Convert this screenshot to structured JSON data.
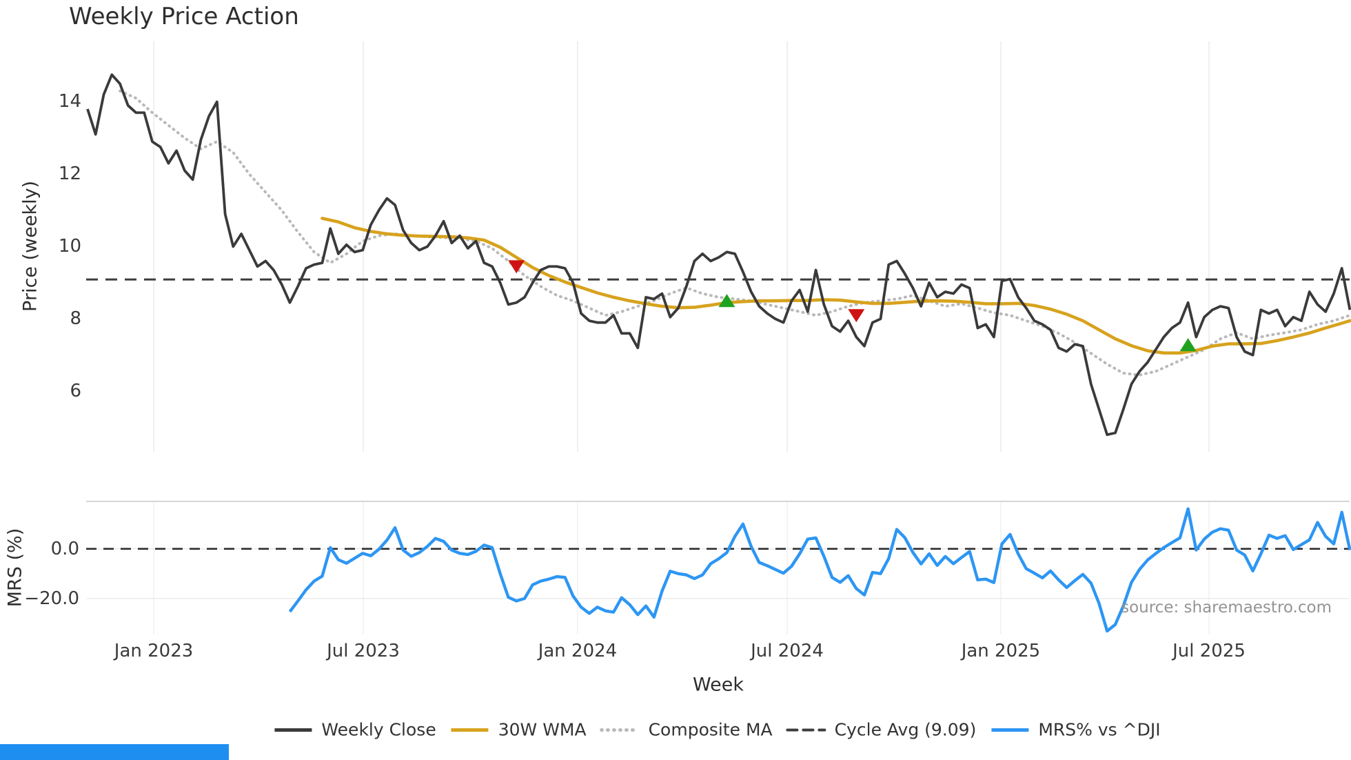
{
  "title": "Weekly Price Action",
  "source_note": "source: sharemaestro.com",
  "colors": {
    "weekly_close": "#3a3a3a",
    "wma_30w": "#d7a21d",
    "composite_ma": "#b9b9b9",
    "cycle_avg": "#3d3d3d",
    "mrs": "#2d96f3",
    "sell_marker": "#cf1313",
    "buy_marker": "#1fa21f",
    "grid": "#ececec",
    "panel_border": "#c9c9c9",
    "source_text": "#949494"
  },
  "chart_data": {
    "type": "line",
    "title": "Weekly Price Action",
    "x_axis": {
      "label": "Week",
      "tick_labels": [
        "Jan 2023",
        "Jul 2023",
        "Jan 2024",
        "Jul 2024",
        "Jan 2025",
        "Jul 2025"
      ],
      "tick_weeks": [
        8.18,
        34.07,
        60.56,
        86.46,
        112.86,
        138.59
      ]
    },
    "price_panel": {
      "ylabel": "Price (weekly)",
      "ytick_labels": [
        "14",
        "12",
        "10",
        "8",
        "6"
      ],
      "yticks": [
        14,
        12,
        10,
        8,
        6
      ],
      "ylim": [
        4.33,
        15.67
      ],
      "cycle_avg": 9.09,
      "grid": "vertical-only"
    },
    "mrs_panel": {
      "ylabel": "MRS (%)",
      "ytick_labels": [
        "0.0",
        "−20.0"
      ],
      "yticks": [
        0.0,
        -20.0
      ],
      "ylim": [
        -34.5,
        19.1
      ],
      "zero_line": 0.0
    },
    "legend": [
      {
        "label": "Weekly Close",
        "color": "#3a3a3a",
        "style": "solid"
      },
      {
        "label": "30W WMA",
        "color": "#d7a21d",
        "style": "solid"
      },
      {
        "label": "Composite MA",
        "color": "#b9b9b9",
        "style": "dotted"
      },
      {
        "label": "Cycle Avg (9.09)",
        "color": "#3d3d3d",
        "style": "dashed"
      },
      {
        "label": "MRS% vs ^DJI",
        "color": "#2d96f3",
        "style": "solid"
      }
    ],
    "series": {
      "weekly_close": {
        "name": "Weekly Close",
        "start_week": 0,
        "values": [
          13.8,
          13.1,
          14.2,
          14.75,
          14.5,
          13.9,
          13.7,
          13.7,
          12.9,
          12.75,
          12.3,
          12.65,
          12.1,
          11.85,
          12.95,
          13.6,
          14.0,
          10.9,
          10.0,
          10.35,
          9.9,
          9.45,
          9.6,
          9.35,
          8.95,
          8.45,
          8.9,
          9.4,
          9.5,
          9.55,
          10.5,
          9.8,
          10.05,
          9.85,
          9.9,
          10.6,
          11.0,
          11.33,
          11.15,
          10.45,
          10.1,
          9.9,
          10.0,
          10.3,
          10.7,
          10.1,
          10.3,
          9.95,
          10.15,
          9.55,
          9.45,
          9.0,
          8.4,
          8.45,
          8.6,
          9.0,
          9.35,
          9.45,
          9.45,
          9.4,
          9.0,
          8.15,
          7.95,
          7.9,
          7.9,
          8.1,
          7.6,
          7.6,
          7.2,
          8.6,
          8.55,
          8.7,
          8.05,
          8.3,
          8.9,
          9.6,
          9.8,
          9.6,
          9.7,
          9.85,
          9.8,
          9.3,
          8.75,
          8.35,
          8.15,
          8.0,
          7.9,
          8.5,
          8.8,
          8.2,
          9.35,
          8.4,
          7.8,
          7.65,
          7.95,
          7.5,
          7.25,
          7.9,
          8.0,
          9.5,
          9.6,
          9.25,
          8.85,
          8.35,
          9.0,
          8.6,
          8.75,
          8.7,
          8.95,
          8.85,
          7.75,
          7.85,
          7.5,
          9.05,
          9.1,
          8.6,
          8.3,
          7.95,
          7.85,
          7.7,
          7.2,
          7.1,
          7.3,
          7.25,
          6.2,
          5.5,
          4.8,
          4.85,
          5.5,
          6.2,
          6.55,
          6.8,
          7.15,
          7.5,
          7.75,
          7.9,
          8.45,
          7.5,
          8.05,
          8.25,
          8.35,
          8.3,
          7.5,
          7.1,
          7.0,
          8.25,
          8.15,
          8.25,
          7.8,
          8.05,
          7.95,
          8.75,
          8.4,
          8.2,
          8.7,
          9.4,
          8.25
        ]
      },
      "wma_30w": {
        "name": "30W WMA",
        "points": [
          [
            29,
            10.78
          ],
          [
            31,
            10.68
          ],
          [
            33,
            10.52
          ],
          [
            35,
            10.42
          ],
          [
            37,
            10.35
          ],
          [
            39,
            10.31
          ],
          [
            41,
            10.29
          ],
          [
            43,
            10.28
          ],
          [
            45,
            10.27
          ],
          [
            47,
            10.24
          ],
          [
            49,
            10.18
          ],
          [
            51,
            9.98
          ],
          [
            53,
            9.7
          ],
          [
            55,
            9.42
          ],
          [
            57,
            9.2
          ],
          [
            59,
            9.02
          ],
          [
            61,
            8.87
          ],
          [
            63,
            8.72
          ],
          [
            65,
            8.6
          ],
          [
            67,
            8.5
          ],
          [
            69,
            8.42
          ],
          [
            71,
            8.35
          ],
          [
            73,
            8.31
          ],
          [
            75,
            8.32
          ],
          [
            77,
            8.38
          ],
          [
            79,
            8.45
          ],
          [
            81,
            8.48
          ],
          [
            83,
            8.5
          ],
          [
            85,
            8.5
          ],
          [
            87,
            8.51
          ],
          [
            89,
            8.51
          ],
          [
            91,
            8.53
          ],
          [
            93,
            8.52
          ],
          [
            95,
            8.47
          ],
          [
            97,
            8.43
          ],
          [
            99,
            8.43
          ],
          [
            101,
            8.46
          ],
          [
            103,
            8.49
          ],
          [
            105,
            8.5
          ],
          [
            107,
            8.49
          ],
          [
            109,
            8.46
          ],
          [
            111,
            8.42
          ],
          [
            113,
            8.42
          ],
          [
            115,
            8.43
          ],
          [
            117,
            8.37
          ],
          [
            119,
            8.27
          ],
          [
            121,
            8.13
          ],
          [
            123,
            7.95
          ],
          [
            125,
            7.7
          ],
          [
            127,
            7.45
          ],
          [
            129,
            7.26
          ],
          [
            131,
            7.12
          ],
          [
            133,
            7.06
          ],
          [
            135,
            7.06
          ],
          [
            137,
            7.13
          ],
          [
            139,
            7.25
          ],
          [
            141,
            7.31
          ],
          [
            143,
            7.31
          ],
          [
            145,
            7.32
          ],
          [
            147,
            7.4
          ],
          [
            149,
            7.5
          ],
          [
            151,
            7.61
          ],
          [
            153,
            7.75
          ],
          [
            155,
            7.88
          ],
          [
            156,
            7.95
          ]
        ]
      },
      "composite_ma": {
        "name": "Composite MA",
        "points": [
          [
            4,
            14.3
          ],
          [
            6,
            14.1
          ],
          [
            8,
            13.7
          ],
          [
            10,
            13.35
          ],
          [
            12,
            13.0
          ],
          [
            14,
            12.7
          ],
          [
            16,
            12.9
          ],
          [
            18,
            12.6
          ],
          [
            20,
            12.0
          ],
          [
            22,
            11.5
          ],
          [
            24,
            11.0
          ],
          [
            26,
            10.4
          ],
          [
            28,
            9.85
          ],
          [
            30,
            9.55
          ],
          [
            32,
            9.8
          ],
          [
            34,
            10.15
          ],
          [
            36,
            10.3
          ],
          [
            38,
            10.35
          ],
          [
            40,
            10.3
          ],
          [
            42,
            10.27
          ],
          [
            44,
            10.25
          ],
          [
            46,
            10.22
          ],
          [
            48,
            10.15
          ],
          [
            50,
            9.95
          ],
          [
            52,
            9.6
          ],
          [
            54,
            9.2
          ],
          [
            56,
            8.9
          ],
          [
            58,
            8.65
          ],
          [
            60,
            8.5
          ],
          [
            62,
            8.3
          ],
          [
            64,
            8.1
          ],
          [
            66,
            8.2
          ],
          [
            68,
            8.35
          ],
          [
            70,
            8.5
          ],
          [
            72,
            8.7
          ],
          [
            74,
            8.86
          ],
          [
            76,
            8.7
          ],
          [
            78,
            8.6
          ],
          [
            80,
            8.55
          ],
          [
            82,
            8.5
          ],
          [
            84,
            8.4
          ],
          [
            86,
            8.3
          ],
          [
            88,
            8.2
          ],
          [
            90,
            8.1
          ],
          [
            92,
            8.2
          ],
          [
            94,
            8.35
          ],
          [
            96,
            8.45
          ],
          [
            98,
            8.5
          ],
          [
            100,
            8.55
          ],
          [
            102,
            8.65
          ],
          [
            104,
            8.5
          ],
          [
            106,
            8.35
          ],
          [
            108,
            8.42
          ],
          [
            110,
            8.3
          ],
          [
            112,
            8.17
          ],
          [
            114,
            8.1
          ],
          [
            116,
            7.95
          ],
          [
            118,
            7.8
          ],
          [
            120,
            7.6
          ],
          [
            122,
            7.35
          ],
          [
            124,
            7.05
          ],
          [
            126,
            6.75
          ],
          [
            128,
            6.5
          ],
          [
            130,
            6.45
          ],
          [
            132,
            6.55
          ],
          [
            134,
            6.75
          ],
          [
            136,
            6.95
          ],
          [
            138,
            7.15
          ],
          [
            140,
            7.45
          ],
          [
            142,
            7.62
          ],
          [
            144,
            7.45
          ],
          [
            146,
            7.55
          ],
          [
            148,
            7.62
          ],
          [
            150,
            7.7
          ],
          [
            152,
            7.85
          ],
          [
            154,
            7.95
          ],
          [
            156,
            8.1
          ]
        ]
      },
      "mrs_pct": {
        "name": "MRS% vs ^DJI",
        "start_week": 25,
        "values": [
          -25.3,
          -21,
          -16.5,
          -13,
          -11,
          0.5,
          -4.4,
          -5.8,
          -3.8,
          -1.8,
          -2.8,
          -0.2,
          3.5,
          8.5,
          -0.5,
          -3,
          -1.5,
          1,
          4.2,
          3,
          -0.5,
          -1.8,
          -2.3,
          -1,
          1.5,
          0.5,
          -10,
          -19.5,
          -21,
          -20,
          -14.5,
          -13,
          -12.2,
          -11.2,
          -11.5,
          -19,
          -23.5,
          -26,
          -23.5,
          -25,
          -25.5,
          -19.7,
          -22.5,
          -26.5,
          -23,
          -27.5,
          -17,
          -9,
          -10,
          -10.5,
          -12,
          -10.5,
          -6,
          -4,
          -1.5,
          5,
          10,
          1,
          -5.5,
          -6.8,
          -8.3,
          -9.8,
          -7,
          -2,
          3.9,
          4.4,
          -3,
          -11.5,
          -13.5,
          -10.8,
          -16,
          -18.6,
          -9.5,
          -10,
          -3.9,
          7.8,
          4.5,
          -1.5,
          -6.1,
          -2,
          -6.7,
          -3.1,
          -6,
          -3.5,
          -1.1,
          -12.5,
          -12.2,
          -13.6,
          2,
          5.8,
          -2,
          -8,
          -9.8,
          -11.7,
          -8.9,
          -12.5,
          -15.6,
          -12.8,
          -10.3,
          -13.8,
          -22,
          -33.1,
          -30.5,
          -23,
          -13.5,
          -8.3,
          -4.5,
          -1.9,
          0.5,
          2.5,
          4.4,
          16.1,
          -0.5,
          3.9,
          6.7,
          8.1,
          7.5,
          -0.5,
          -2.5,
          -8.9,
          -2,
          5.5,
          4.2,
          5.3,
          -0.3,
          1.7,
          3.6,
          10.6,
          5,
          2,
          14.7,
          -0.5
        ]
      }
    },
    "markers": {
      "sell": [
        {
          "week": 53,
          "value": 9.45
        },
        {
          "week": 95,
          "value": 8.1
        }
      ],
      "buy": [
        {
          "week": 79,
          "value": 8.5
        },
        {
          "week": 136,
          "value": 7.28
        }
      ]
    }
  }
}
